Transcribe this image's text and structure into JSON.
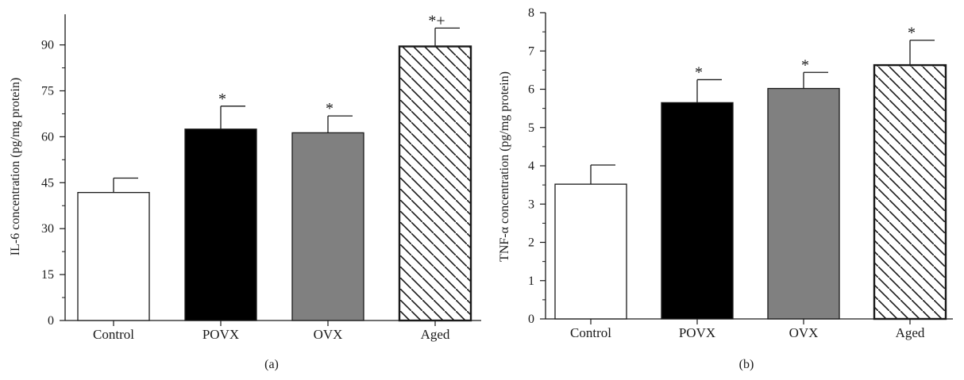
{
  "chart_data": [
    {
      "type": "bar",
      "panel_label": "(a)",
      "ylabel": "IL-6 concentration (pg/mg protein)",
      "categories": [
        "Control",
        "POVX",
        "OVX",
        "Aged"
      ],
      "values": [
        41.8,
        62.5,
        61.3,
        89.5
      ],
      "errors": [
        4.7,
        7.5,
        5.5,
        6.0
      ],
      "significance": [
        "",
        "*",
        "*",
        "*+"
      ],
      "ylim": [
        0,
        100
      ],
      "yticks": [
        "0",
        "15",
        "30",
        "45",
        "60",
        "75",
        "90"
      ],
      "ytick_values": [
        0,
        15,
        30,
        45,
        60,
        75,
        90
      ],
      "bar_styles": [
        "white",
        "black",
        "gray",
        "hatched"
      ],
      "colors": {
        "white": "#ffffff",
        "black": "#000000",
        "gray": "#808080",
        "hatch": "#1a1a1a",
        "edge": "#1a1a1a"
      },
      "grid": false
    },
    {
      "type": "bar",
      "panel_label": "(b)",
      "ylabel": "TNF-α concentration (pg/mg protein)",
      "categories": [
        "Control",
        "POVX",
        "OVX",
        "Aged"
      ],
      "values": [
        3.52,
        5.65,
        6.02,
        6.63
      ],
      "errors": [
        0.5,
        0.6,
        0.42,
        0.65
      ],
      "significance": [
        "",
        "*",
        "*",
        "*"
      ],
      "ylim": [
        0,
        8
      ],
      "yticks": [
        "0",
        "1",
        "2",
        "3",
        "4",
        "5",
        "6",
        "7",
        "8"
      ],
      "ytick_values": [
        0,
        1,
        2,
        3,
        4,
        5,
        6,
        7,
        8
      ],
      "bar_styles": [
        "white",
        "black",
        "gray",
        "hatched"
      ],
      "colors": {
        "white": "#ffffff",
        "black": "#000000",
        "gray": "#808080",
        "hatch": "#1a1a1a",
        "edge": "#1a1a1a"
      },
      "grid": false
    }
  ]
}
